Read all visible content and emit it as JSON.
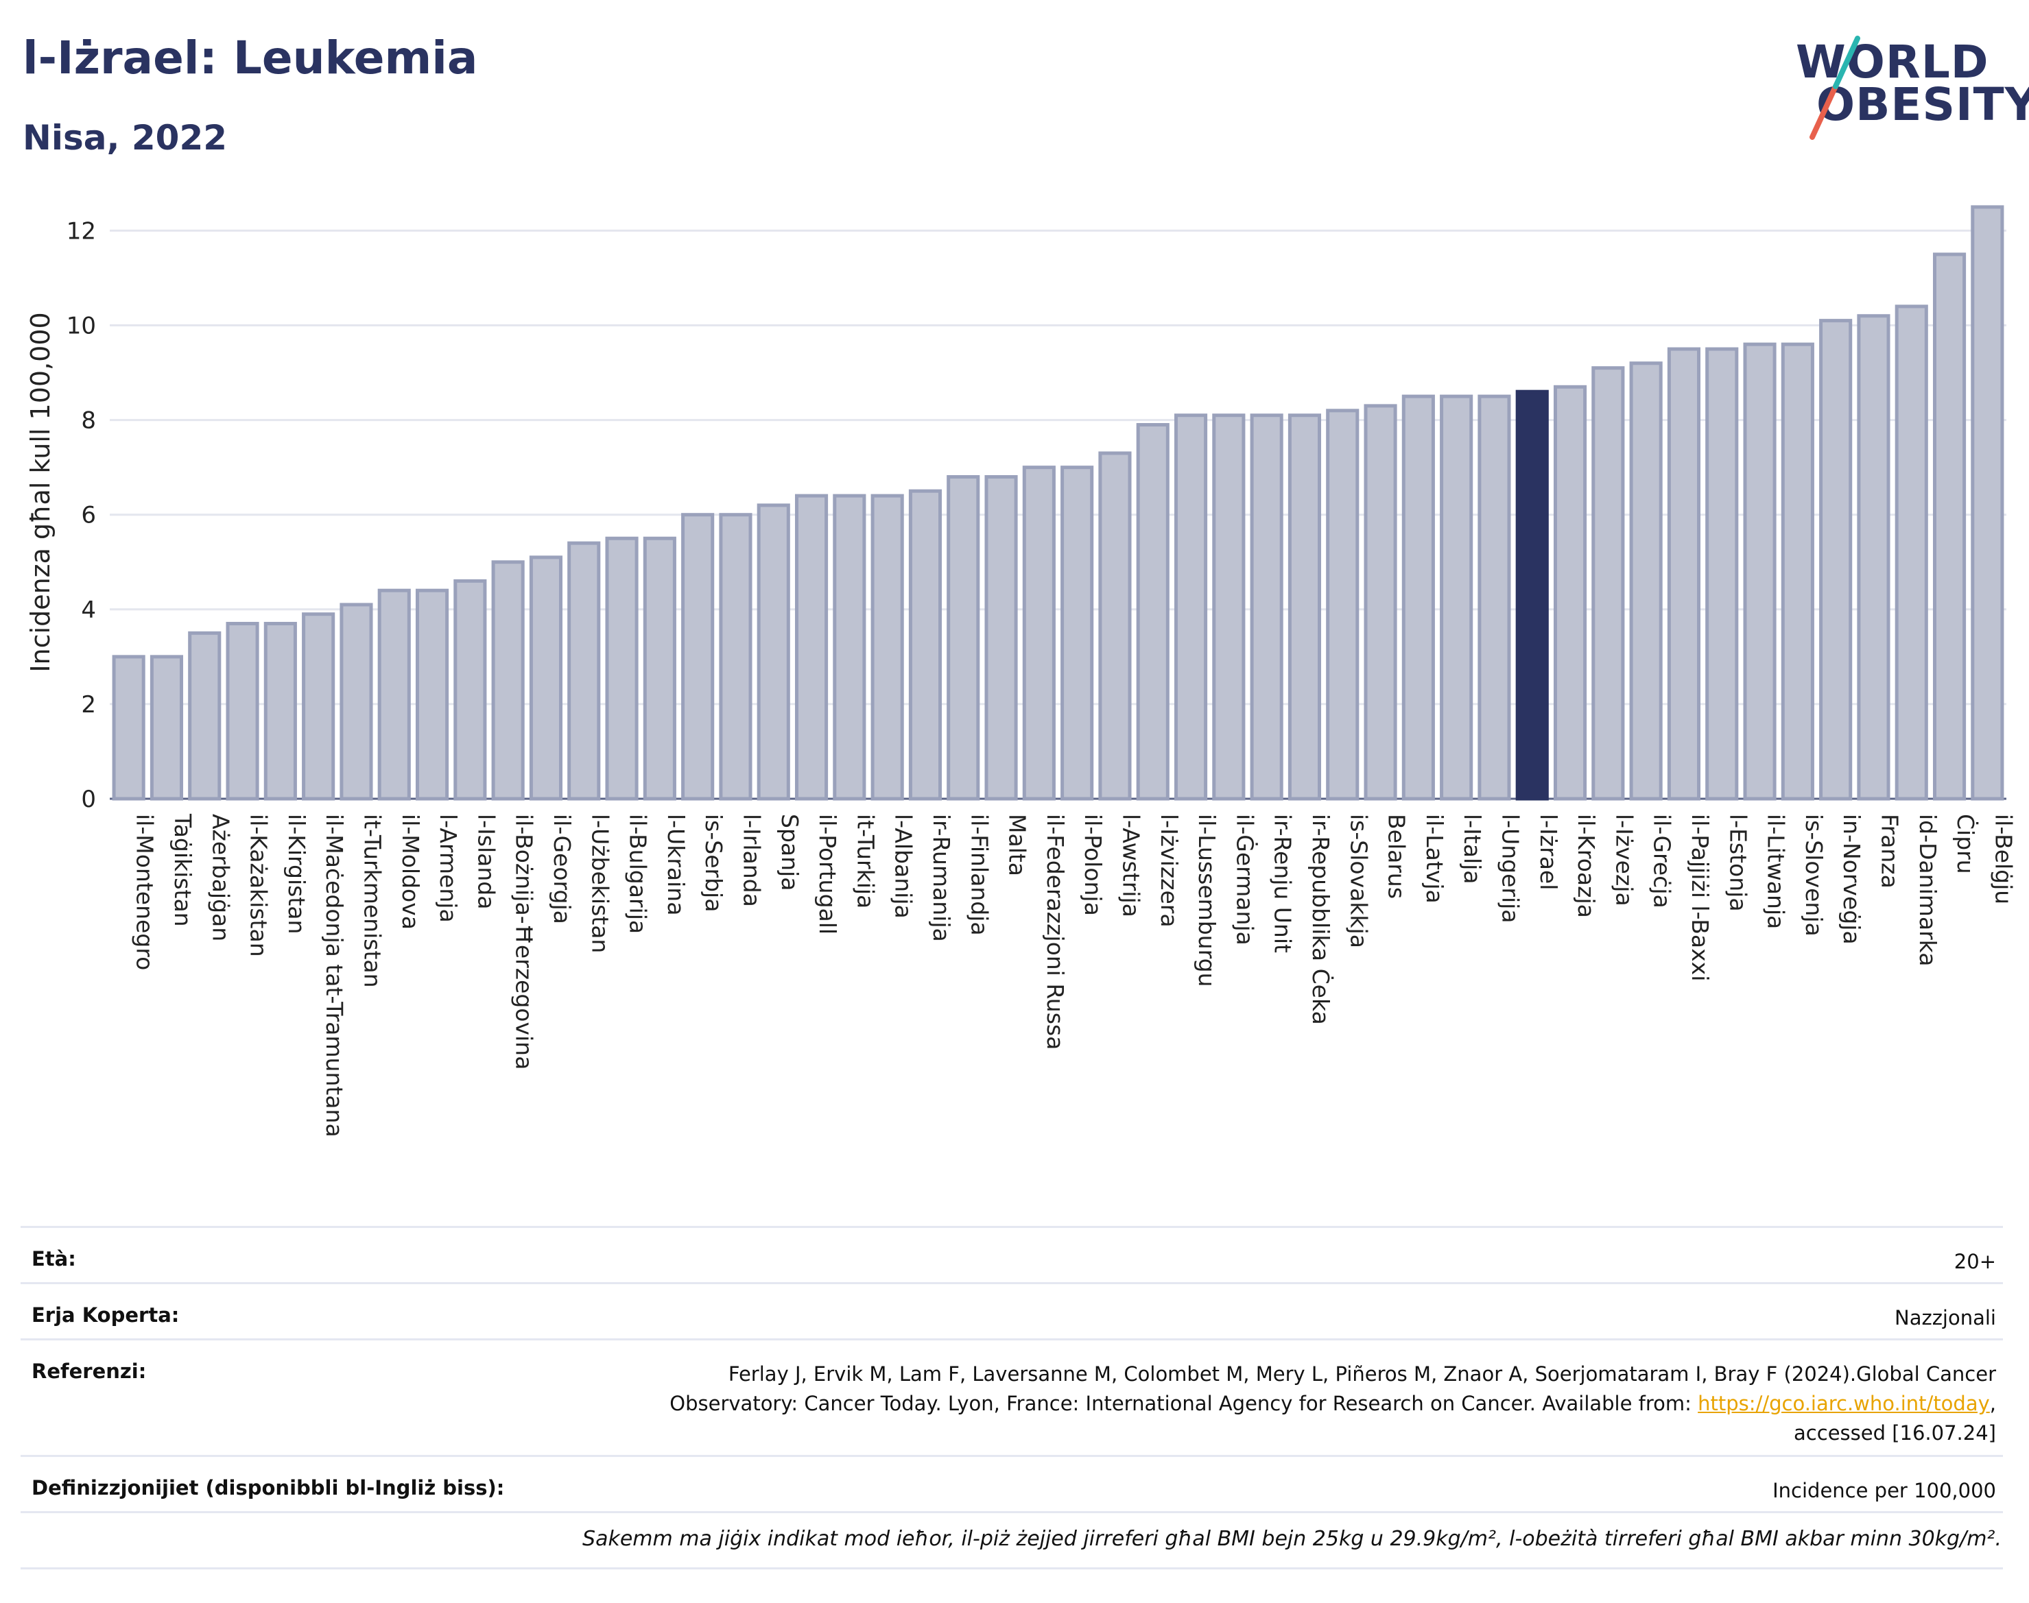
{
  "header": {
    "title": "l-Iżrael: Leukemia",
    "subtitle": "Nisa, 2022"
  },
  "logo": {
    "line1": "WORLD",
    "line2": "OBESITY",
    "slash_colors": [
      "#e8604c",
      "#2ab5b0"
    ]
  },
  "colors": {
    "bar": "#bec2d1",
    "bar_edge": "#9aa1bb",
    "highlight": "#2a3361",
    "grid": "#e4e6ee",
    "axis_text": "#222222"
  },
  "chart_data": {
    "type": "bar",
    "title": "",
    "ylabel": "Incidenza għal kull 100,000",
    "ylim": [
      0,
      12.6
    ],
    "yticks": [
      0,
      2,
      4,
      6,
      8,
      10,
      12
    ],
    "grid": true,
    "highlight": "l-Iżrael",
    "categories": [
      "il-Montenegro",
      "Taġikistan",
      "Ażerbajġan",
      "il-Każakistan",
      "il-Kirgistan",
      "il-Maċedonja tat-Tramuntana",
      "it-Turkmenistan",
      "il-Moldova",
      "l-Armenja",
      "l-Islanda",
      "il-Bożnija-Ħerzegovina",
      "il-Georgja",
      "l-Użbekistan",
      "il-Bulgarija",
      "l-Ukraina",
      "is-Serbja",
      "l-Irlanda",
      "Spanja",
      "il-Portugall",
      "it-Turkija",
      "l-Albanija",
      "ir-Rumanija",
      "il-Finlandja",
      "Malta",
      "il-Federazzjoni Russa",
      "il-Polonja",
      "l-Awstrija",
      "l-Iżvizzera",
      "il-Lussemburgu",
      "il-Ġermanja",
      "ir-Renju Unit",
      "ir-Repubblika Ċeka",
      "is-Slovakkja",
      "Belarus",
      "il-Latvja",
      "l-Italja",
      "l-Ungerija",
      "l-Iżrael",
      "il-Kroazja",
      "l-Iżvezja",
      "il-Greċja",
      "il-Pajjiżi l-Baxxi",
      "l-Estonja",
      "il-Litwanja",
      "is-Slovenja",
      "in-Norveġja",
      "Franza",
      "id-Danimarka",
      "Ċipru",
      "il-Belġju"
    ],
    "values": [
      3.0,
      3.0,
      3.5,
      3.7,
      3.7,
      3.9,
      4.1,
      4.4,
      4.4,
      4.6,
      5.0,
      5.1,
      5.4,
      5.5,
      5.5,
      6.0,
      6.0,
      6.2,
      6.4,
      6.4,
      6.4,
      6.5,
      6.8,
      6.8,
      7.0,
      7.0,
      7.3,
      7.9,
      8.1,
      8.1,
      8.1,
      8.1,
      8.2,
      8.3,
      8.5,
      8.5,
      8.5,
      8.6,
      8.7,
      9.1,
      9.2,
      9.5,
      9.5,
      9.6,
      9.6,
      10.1,
      10.2,
      10.4,
      11.5,
      12.5
    ]
  },
  "details": {
    "age_label": "Età:",
    "age_value": "20+",
    "area_label": "Erja Koperta:",
    "area_value": "Nazzjonali",
    "ref_label": "Referenzi:",
    "ref_line1": "Ferlay J, Ervik M, Lam F, Laversanne M, Colombet M, Mery L, Piñeros M, Znaor A, Soerjomataram I, Bray F (2024).Global Cancer",
    "ref_line2": "Observatory: Cancer Today. Lyon, France: International Agency for Research on Cancer. Available from: ",
    "ref_link": "https://gco.iarc.who.int/today",
    "ref_line2_end": ",",
    "ref_line3": "accessed [16.07.24]",
    "def_label": "Definizzjonijiet (disponibbli bl-Ingliż biss):",
    "def_value": "Incidence per 100,000",
    "note": "Sakemm ma jiġix indikat mod ieħor, il-piż żejjed jirreferi għal BMI bejn 25kg u 29.9kg/m², l-obeżità tirreferi għal BMI akbar minn 30kg/m²."
  }
}
